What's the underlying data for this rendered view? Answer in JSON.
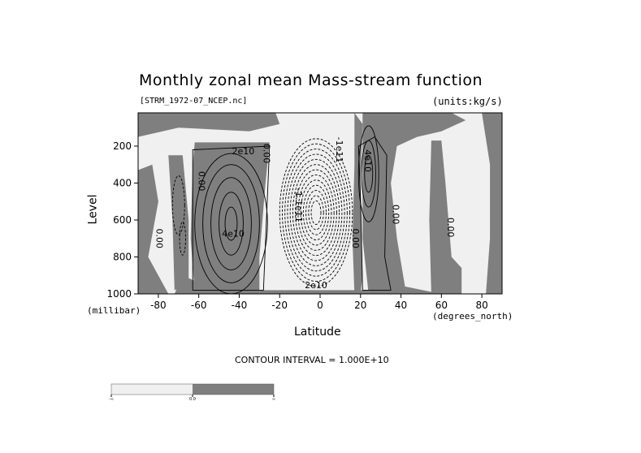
{
  "chart_data": {
    "type": "contour",
    "title": "Monthly zonal mean Mass-stream function",
    "file_label": "[STRM_1972-07_NCEP.nc]",
    "units_label": "(units:kg/s)",
    "xlabel": "Latitude",
    "x_units_label": "(degrees_north)",
    "ylabel": "Level",
    "y_units_label": "(millibar)",
    "xlim": [
      -90,
      90
    ],
    "ylim": [
      1000,
      20
    ],
    "y_reversed": true,
    "x_ticks": [
      "-80",
      "-60",
      "-40",
      "-20",
      "0",
      "20",
      "40",
      "60",
      "80"
    ],
    "x_tick_values": [
      -80,
      -60,
      -40,
      -20,
      0,
      20,
      40,
      60,
      80
    ],
    "y_ticks": [
      "200",
      "400",
      "600",
      "800",
      "1000"
    ],
    "y_tick_values": [
      200,
      400,
      600,
      800,
      1000
    ],
    "contour_interval_label": "CONTOUR INTERVAL = 1.000E+10",
    "fill_colors": {
      "negative": "#f0f0f0",
      "positive": "#7f7f7f"
    },
    "colorbar": {
      "labels": [
        "-∞",
        "0.0",
        "∞"
      ]
    },
    "contour_labels": [
      {
        "text": "2e10",
        "lat": -38,
        "lev": 245
      },
      {
        "text": "4e10",
        "lat": -43,
        "lev": 690
      },
      {
        "text": "0.00",
        "lat": -60,
        "lev": 390
      },
      {
        "text": "0.00",
        "lat": -81,
        "lev": 700
      },
      {
        "text": "0.00",
        "lat": -28,
        "lev": 240
      },
      {
        "text": "-1.1e11",
        "lat": -12,
        "lev": 520
      },
      {
        "text": "-1e11",
        "lat": 8,
        "lev": 220
      },
      {
        "text": "4e10",
        "lat": 22,
        "lev": 280
      },
      {
        "text": "0.00",
        "lat": 16,
        "lev": 700
      },
      {
        "text": "0.00",
        "lat": 36,
        "lev": 570
      },
      {
        "text": "0.00",
        "lat": 63,
        "lev": 640
      },
      {
        "text": "2e10",
        "lat": -2,
        "lev": 970
      }
    ]
  }
}
